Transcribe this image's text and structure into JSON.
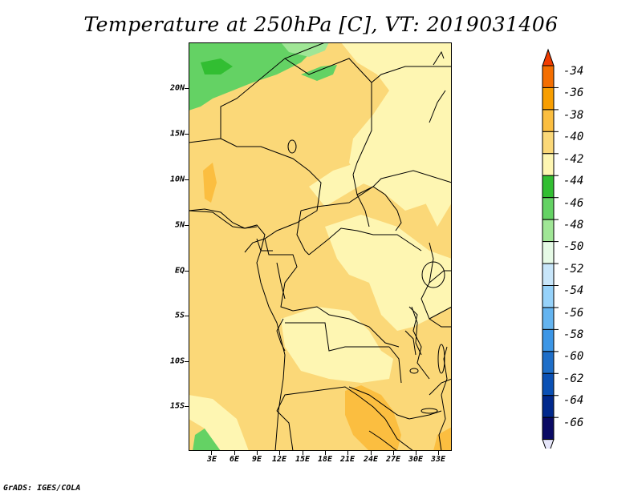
{
  "title": "Temperature at 250hPa [C], VT: 2019031406",
  "credit": "GrADS: IGES/COLA",
  "lat_labels": [
    "20N",
    "15N",
    "10N",
    "5N",
    "EQ",
    "5S",
    "10S",
    "15S"
  ],
  "lon_labels": [
    "3E",
    "6E",
    "9E",
    "12E",
    "15E",
    "18E",
    "21E",
    "24E",
    "27E",
    "30E",
    "33E"
  ],
  "colorbar": {
    "labels": [
      "-34",
      "-36",
      "-38",
      "-40",
      "-42",
      "-44",
      "-46",
      "-48",
      "-50",
      "-52",
      "-54",
      "-56",
      "-58",
      "-60",
      "-62",
      "-64",
      "-66"
    ],
    "colors": [
      "#f03c00",
      "#f46e00",
      "#f89e00",
      "#fbbe40",
      "#fbd878",
      "#fef6b2",
      "#32be32",
      "#64d264",
      "#a0e696",
      "#e6fae6",
      "#c8e6fa",
      "#96d2fa",
      "#64b4f0",
      "#3c96e6",
      "#1e6ec8",
      "#0a50b4",
      "#00288c",
      "#0a0a64",
      "#e6e6fa"
    ]
  },
  "colors": {
    "base": "#fbd878",
    "light": "#fef6b2",
    "orange": "#fbbe40",
    "green": "#32be32",
    "green_light": "#64d264",
    "green_pale": "#a0e696"
  }
}
